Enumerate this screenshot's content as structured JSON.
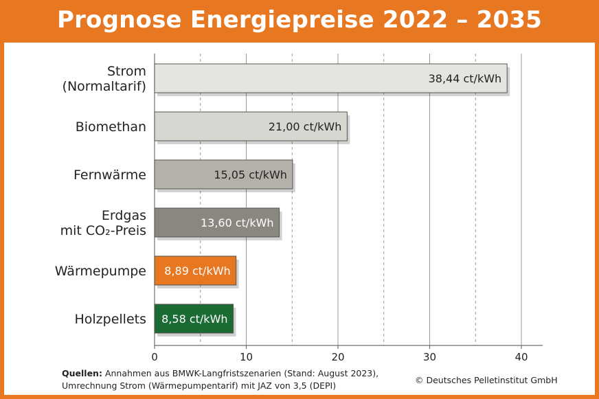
{
  "header": {
    "title": "Prognose Energiepreise 2022 – 2035"
  },
  "footer": {
    "sources_label": "Quellen:",
    "sources_line1": "Annahmen aus BMWK-Langfristszenarien (Stand: August 2023),",
    "sources_line2": "Umrechnung Strom (Wärmepumpentarif) mit JAZ von 3,5 (DEPI)",
    "copyright": "© Deutsches Pelletinstitut GmbH"
  },
  "colors": {
    "header_bg": "#e87722",
    "strom": "#e6e4e0",
    "biomethan": "#d8d6d0",
    "fernwaerme": "#b3b1aa",
    "erdgas": "#8a8780",
    "waermepumpe": "#e87722",
    "holzpellets": "#1b6b34"
  },
  "chart_data": {
    "type": "bar",
    "orientation": "horizontal",
    "categories": [
      [
        "Strom",
        "(Normaltarif)"
      ],
      [
        "Biomethan"
      ],
      [
        "Fernwärme"
      ],
      [
        "Erdgas",
        "mit CO₂-Preis"
      ],
      [
        "Wärmepumpe"
      ],
      [
        "Holzpellets"
      ]
    ],
    "values": [
      38.44,
      21.0,
      15.05,
      13.6,
      8.89,
      8.58
    ],
    "value_labels": [
      "38,44 ct/kWh",
      "21,00 ct/kWh",
      "15,05 ct/kWh",
      "13,60 ct/kWh",
      "8,89 ct/kWh",
      "8,58 ct/kWh"
    ],
    "bar_colors": [
      "#e6e4e0",
      "#d8d6d0",
      "#b3b1aa",
      "#8a8780",
      "#e87722",
      "#1b6b34"
    ],
    "label_colors": [
      "#222222",
      "#222222",
      "#222222",
      "#ffffff",
      "#ffffff",
      "#ffffff"
    ],
    "xlim": [
      0,
      42
    ],
    "xticks": [
      0,
      10,
      20,
      30,
      40
    ],
    "xtick_labels": [
      "0",
      "10",
      "20",
      "30",
      "40"
    ],
    "grid": true
  }
}
